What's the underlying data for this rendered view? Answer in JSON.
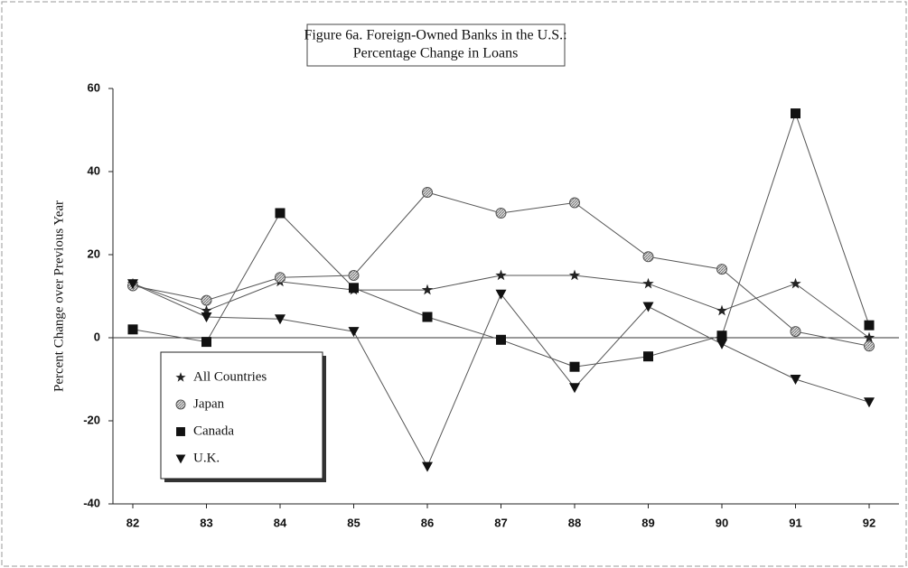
{
  "chart_data": {
    "type": "line",
    "title": [
      "Figure 6a.  Foreign-Owned Banks in the U.S.:",
      "Percentage Change in Loans"
    ],
    "y_label": "Percent Change over Previous Year",
    "categories": [
      "82",
      "83",
      "84",
      "85",
      "86",
      "87",
      "88",
      "89",
      "90",
      "91",
      "92"
    ],
    "series": [
      {
        "name": "All Countries",
        "color": "#222222",
        "marker": "star",
        "values": [
          13,
          6.5,
          13.5,
          11.5,
          11.5,
          15,
          15,
          13,
          6.5,
          13,
          0
        ]
      },
      {
        "name": "Japan",
        "color": "#555555",
        "marker": "circle",
        "values": [
          12.5,
          9,
          14.5,
          15,
          35,
          30,
          32.5,
          19.5,
          16.5,
          1.5,
          -2
        ]
      },
      {
        "name": "Canada",
        "color": "#111111",
        "marker": "square",
        "values": [
          2,
          -1,
          30,
          12,
          5,
          -0.5,
          -7,
          -4.5,
          0.5,
          54,
          3
        ]
      },
      {
        "name": "U.K.",
        "color": "#111111",
        "marker": "triangle-down",
        "values": [
          13,
          5,
          4.5,
          1.5,
          -31,
          10.5,
          -12,
          7.5,
          -1.5,
          -10,
          -15.5
        ]
      }
    ],
    "ylim": [
      -40,
      60
    ],
    "yticks": [
      -40,
      -20,
      0,
      20,
      40,
      60
    ],
    "zero_line": true,
    "grid": false,
    "legend": "lower left"
  }
}
